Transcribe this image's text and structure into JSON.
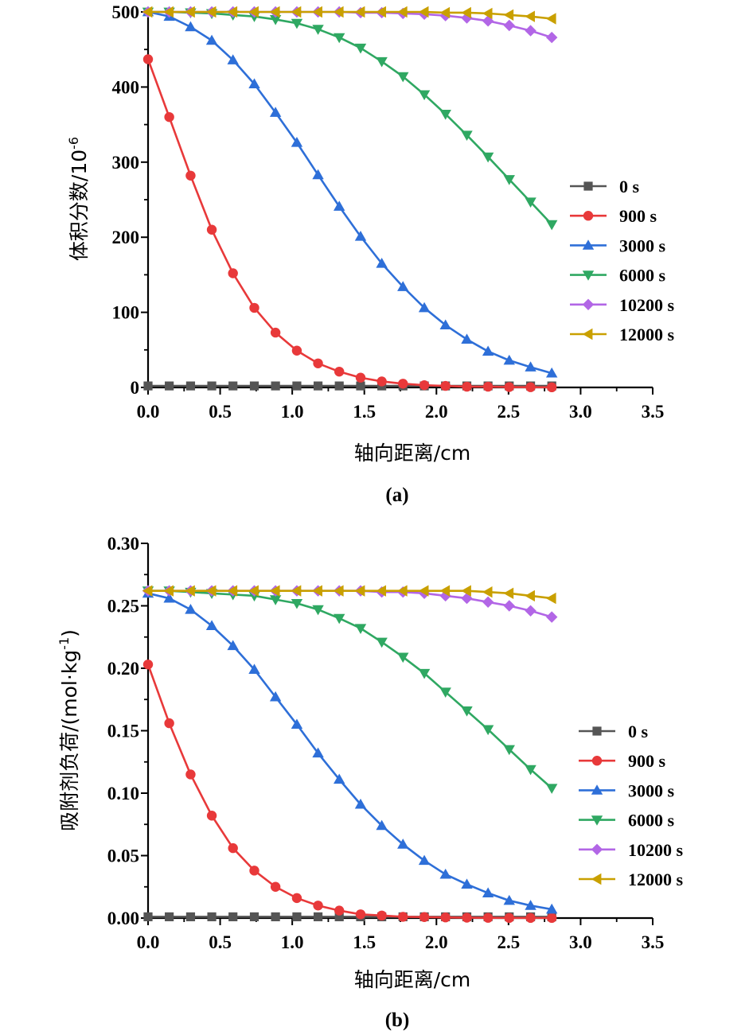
{
  "chart_data": [
    {
      "type": "line",
      "panel_label": "(a)",
      "xlabel": "轴向距离/cm",
      "ylabel": "体积分数/10",
      "ylabel_superscript": "-6",
      "xlim": [
        0,
        3.5
      ],
      "ylim": [
        0,
        500
      ],
      "x_ticks": [
        0,
        0.5,
        1.0,
        1.5,
        2.0,
        2.5,
        3.0,
        3.5
      ],
      "x_tick_labels": [
        "0.0",
        "0.5",
        "1.0",
        "1.5",
        "2.0",
        "2.5",
        "3.0",
        "3.5"
      ],
      "y_ticks": [
        0,
        100,
        200,
        300,
        400,
        500
      ],
      "y_tick_labels": [
        "0",
        "100",
        "200",
        "300",
        "400",
        "500"
      ],
      "legend_position": "right",
      "x": [
        0,
        0.147,
        0.295,
        0.442,
        0.589,
        0.737,
        0.884,
        1.032,
        1.179,
        1.326,
        1.474,
        1.621,
        1.768,
        1.916,
        2.063,
        2.211,
        2.358,
        2.505,
        2.653,
        2.8
      ],
      "series": [
        {
          "name": "0 s",
          "color": "#555555",
          "marker": "square",
          "values": [
            2,
            2,
            2,
            2,
            2,
            2,
            2,
            2,
            2,
            2,
            2,
            2,
            2,
            2,
            2,
            2,
            2,
            2,
            2,
            2
          ]
        },
        {
          "name": "900 s",
          "color": "#e8393a",
          "marker": "circle",
          "values": [
            437,
            360,
            282,
            210,
            152,
            106,
            73,
            49,
            32,
            21,
            13,
            8,
            5,
            3,
            2,
            1,
            1,
            0.5,
            0.3,
            0.2
          ]
        },
        {
          "name": "3000 s",
          "color": "#2e6fd8",
          "marker": "triangle-up",
          "values": [
            500,
            494,
            480,
            462,
            436,
            404,
            366,
            326,
            283,
            241,
            201,
            165,
            134,
            106,
            83,
            64,
            48,
            36,
            27,
            19
          ]
        },
        {
          "name": "6000 s",
          "color": "#2fa862",
          "marker": "triangle-down",
          "values": [
            500,
            500,
            499,
            498,
            496,
            494,
            490,
            485,
            477,
            466,
            452,
            434,
            414,
            390,
            364,
            336,
            307,
            277,
            247,
            217
          ]
        },
        {
          "name": "10200 s",
          "color": "#b266e6",
          "marker": "diamond",
          "values": [
            500,
            500,
            500,
            500,
            500,
            500,
            500,
            500,
            500,
            500,
            499,
            499,
            498,
            497,
            495,
            492,
            488,
            482,
            475,
            466
          ]
        },
        {
          "name": "12000 s",
          "color": "#c9a000",
          "marker": "triangle-left",
          "values": [
            500,
            500,
            500,
            500,
            500,
            500,
            500,
            500,
            500,
            500,
            500,
            500,
            500,
            500,
            499,
            499,
            498,
            496,
            494,
            491
          ]
        }
      ]
    },
    {
      "type": "line",
      "panel_label": "(b)",
      "xlabel": "轴向距离/cm",
      "ylabel": "吸附剂负荷/(mol·kg",
      "ylabel_superscript": "-1",
      "ylabel_suffix": ")",
      "xlim": [
        0,
        3.5
      ],
      "ylim": [
        0,
        0.3
      ],
      "x_ticks": [
        0,
        0.5,
        1.0,
        1.5,
        2.0,
        2.5,
        3.0,
        3.5
      ],
      "x_tick_labels": [
        "0.0",
        "0.5",
        "1.0",
        "1.5",
        "2.0",
        "2.5",
        "3.0",
        "3.5"
      ],
      "y_ticks": [
        0,
        0.05,
        0.1,
        0.15,
        0.2,
        0.25,
        0.3
      ],
      "y_tick_labels": [
        "0.00",
        "0.05",
        "0.10",
        "0.15",
        "0.20",
        "0.25",
        "0.30"
      ],
      "legend_position": "right",
      "x": [
        0,
        0.147,
        0.295,
        0.442,
        0.589,
        0.737,
        0.884,
        1.032,
        1.179,
        1.326,
        1.474,
        1.621,
        1.768,
        1.916,
        2.063,
        2.211,
        2.358,
        2.505,
        2.653,
        2.8
      ],
      "series": [
        {
          "name": "0 s",
          "color": "#555555",
          "marker": "square",
          "values": [
            0.001,
            0.001,
            0.001,
            0.001,
            0.001,
            0.001,
            0.001,
            0.001,
            0.001,
            0.001,
            0.001,
            0.001,
            0.001,
            0.001,
            0.001,
            0.001,
            0.001,
            0.001,
            0.001,
            0.001
          ]
        },
        {
          "name": "900 s",
          "color": "#e8393a",
          "marker": "circle",
          "values": [
            0.203,
            0.156,
            0.115,
            0.082,
            0.056,
            0.038,
            0.025,
            0.016,
            0.01,
            0.006,
            0.003,
            0.002,
            0.001,
            0.0008,
            0.0005,
            0.0003,
            0.0002,
            0.0001,
            0.0001,
            0.0001
          ]
        },
        {
          "name": "3000 s",
          "color": "#2e6fd8",
          "marker": "triangle-up",
          "values": [
            0.26,
            0.256,
            0.247,
            0.234,
            0.218,
            0.199,
            0.177,
            0.155,
            0.132,
            0.111,
            0.091,
            0.074,
            0.059,
            0.046,
            0.035,
            0.027,
            0.02,
            0.014,
            0.01,
            0.007
          ]
        },
        {
          "name": "6000 s",
          "color": "#2fa862",
          "marker": "triangle-down",
          "values": [
            0.262,
            0.262,
            0.261,
            0.26,
            0.259,
            0.258,
            0.255,
            0.252,
            0.247,
            0.24,
            0.232,
            0.221,
            0.209,
            0.196,
            0.181,
            0.166,
            0.151,
            0.135,
            0.119,
            0.104
          ]
        },
        {
          "name": "10200 s",
          "color": "#b266e6",
          "marker": "diamond",
          "values": [
            0.262,
            0.262,
            0.262,
            0.262,
            0.262,
            0.262,
            0.262,
            0.262,
            0.262,
            0.262,
            0.262,
            0.261,
            0.261,
            0.26,
            0.258,
            0.256,
            0.253,
            0.25,
            0.246,
            0.241
          ]
        },
        {
          "name": "12000 s",
          "color": "#c9a000",
          "marker": "triangle-left",
          "values": [
            0.262,
            0.262,
            0.262,
            0.262,
            0.262,
            0.262,
            0.262,
            0.262,
            0.262,
            0.262,
            0.262,
            0.262,
            0.262,
            0.262,
            0.262,
            0.262,
            0.261,
            0.26,
            0.258,
            0.256
          ]
        }
      ]
    }
  ]
}
